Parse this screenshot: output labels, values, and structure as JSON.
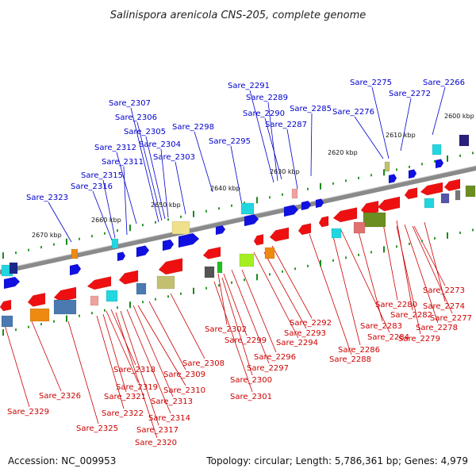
{
  "title": "Salinispora arenicola CNS-205, complete genome",
  "footer": {
    "accession": "Accession: NC_009953",
    "summary": "Topology: circular; Length: 5,786,361 bp; Genes: 4,979"
  },
  "colors": {
    "forward_label": "#0000cc",
    "reverse_label": "#cc0000",
    "backbone": "#808080"
  },
  "kbp_labels": [
    "2600 kbp",
    "2610 kbp",
    "2620 kbp",
    "2630 kbp",
    "2640 kbp",
    "2650 kbp",
    "2660 kbp",
    "2670 kbp"
  ],
  "forward_gene_labels": [
    "Sare_2291",
    "Sare_2275",
    "Sare_2266",
    "Sare_2289",
    "Sare_2272",
    "Sare_2307",
    "Sare_2290",
    "Sare_2285",
    "Sare_2276",
    "Sare_2306",
    "Sare_2287",
    "Sare_2298",
    "Sare_2305",
    "Sare_2304",
    "Sare_2295",
    "Sare_2312",
    "Sare_2311",
    "Sare_2303",
    "Sare_2315",
    "Sare_2316",
    "Sare_2323"
  ],
  "reverse_gene_labels": [
    "Sare_2273",
    "Sare_2274",
    "Sare_2280",
    "Sare_2282",
    "Sare_2277",
    "Sare_2292",
    "Sare_2283",
    "Sare_2278",
    "Sare_2302",
    "Sare_2293",
    "Sare_2284",
    "Sare_2299",
    "Sare_2294",
    "Sare_2279",
    "Sare_2286",
    "Sare_2296",
    "Sare_2288",
    "Sare_2308",
    "Sare_2297",
    "Sare_2318",
    "Sare_2309",
    "Sare_2300",
    "Sare_2319",
    "Sare_2310",
    "Sare_2326",
    "Sare_2321",
    "Sare_2301",
    "Sare_2313",
    "Sare_2329",
    "Sare_2322",
    "Sare_2314",
    "Sare_2325",
    "Sare_2317",
    "Sare_2320"
  ]
}
